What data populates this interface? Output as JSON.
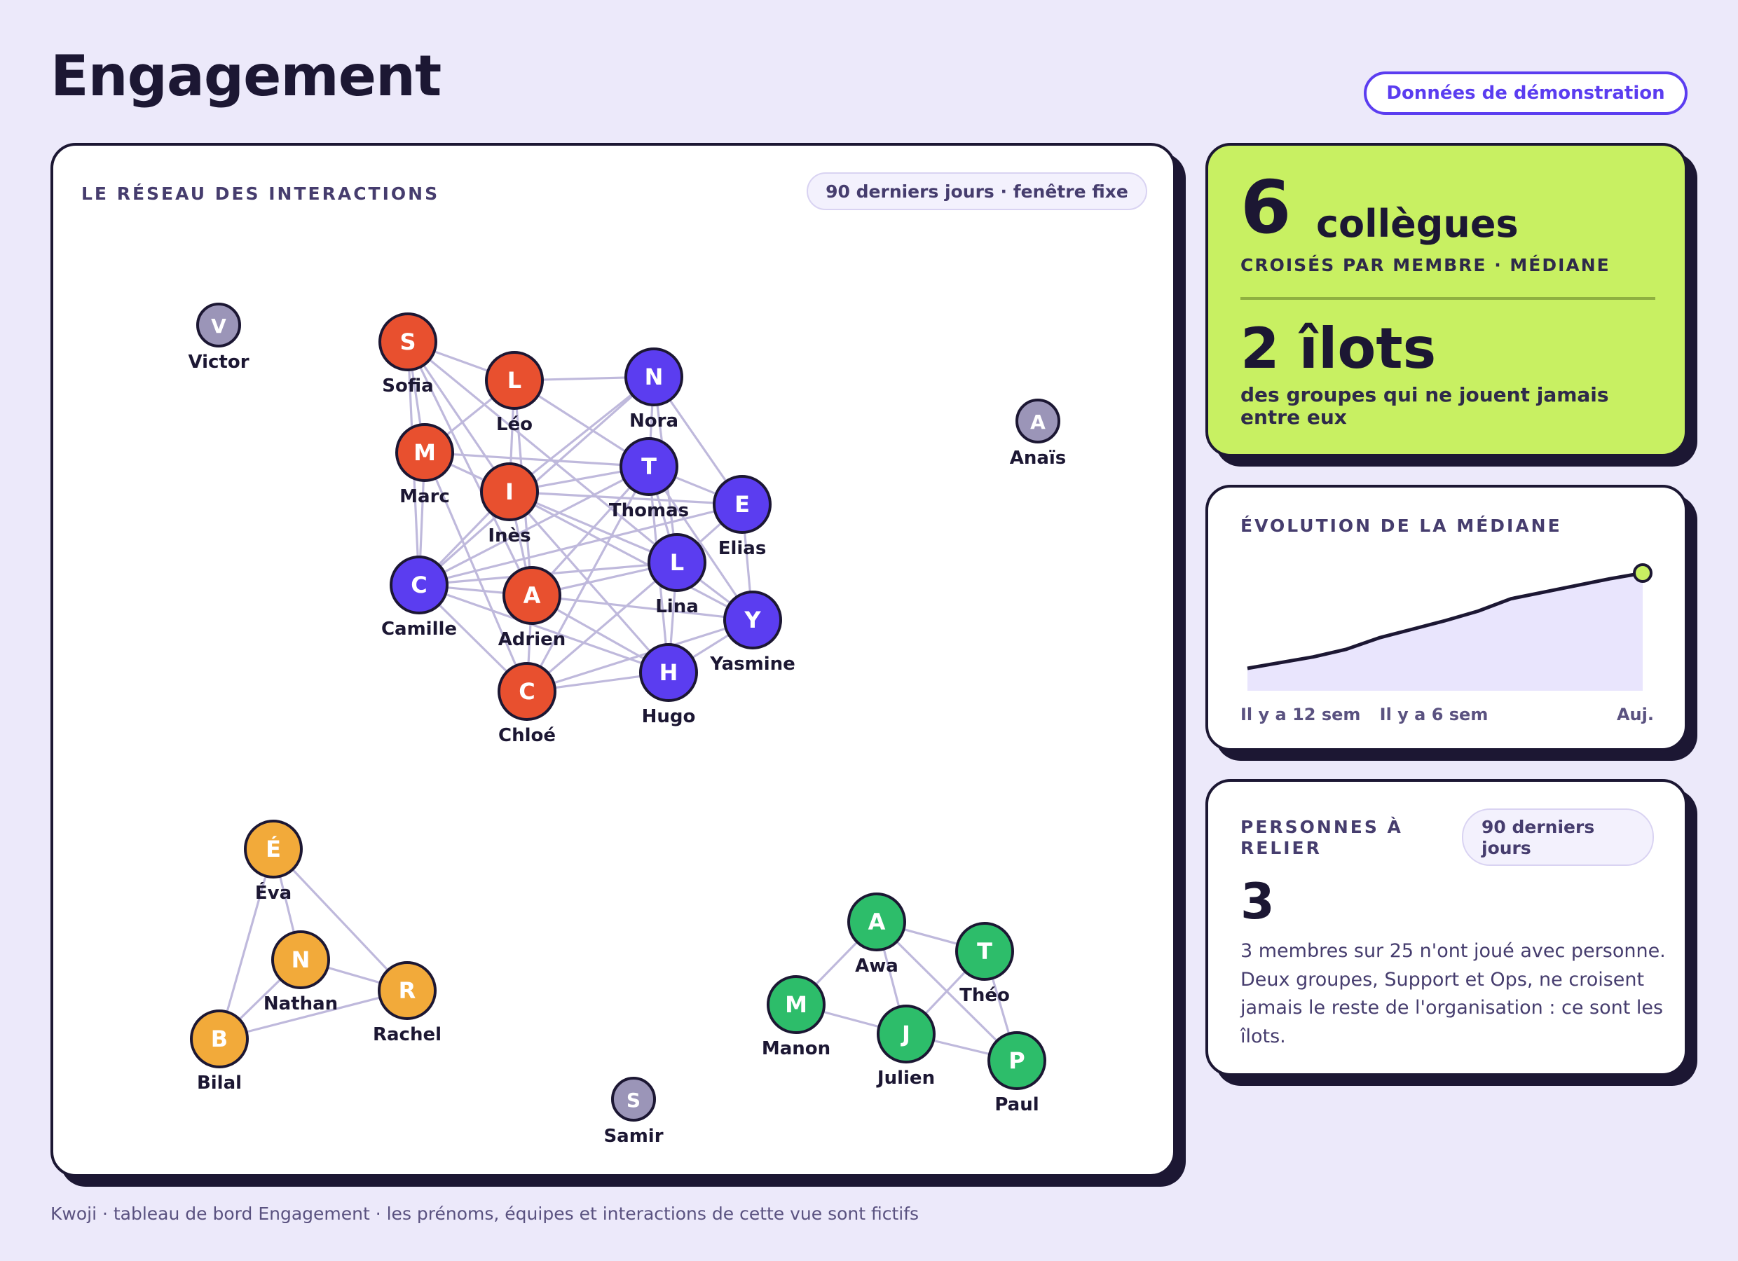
{
  "header": {
    "title": "Engagement",
    "demo_badge": "Données de démonstration"
  },
  "network": {
    "title": "LE RÉSEAU DES INTERACTIONS",
    "window_label": "90 derniers jours · fenêtre fixe",
    "colors": {
      "red": "#e8502f",
      "purple": "#5b3df0",
      "orange": "#f2aa3a",
      "green": "#2dbd6a",
      "gray": "#9b95b8",
      "edge": "#bfb9dc",
      "outline": "#1c1733"
    },
    "nodes": [
      {
        "id": "sofia",
        "letter": "S",
        "name": "Sofia",
        "group": "red"
      },
      {
        "id": "leo",
        "letter": "L",
        "name": "Léo",
        "group": "red"
      },
      {
        "id": "marc",
        "letter": "M",
        "name": "Marc",
        "group": "red"
      },
      {
        "id": "ines",
        "letter": "I",
        "name": "Inès",
        "group": "red"
      },
      {
        "id": "camille",
        "letter": "C",
        "name": "Camille",
        "group": "purple"
      },
      {
        "id": "adrien",
        "letter": "A",
        "name": "Adrien",
        "group": "red"
      },
      {
        "id": "chloe",
        "letter": "C",
        "name": "Chloé",
        "group": "red"
      },
      {
        "id": "nora",
        "letter": "N",
        "name": "Nora",
        "group": "purple"
      },
      {
        "id": "thomas",
        "letter": "T",
        "name": "Thomas",
        "group": "purple"
      },
      {
        "id": "elias",
        "letter": "E",
        "name": "Elias",
        "group": "purple"
      },
      {
        "id": "lina",
        "letter": "L",
        "name": "Lina",
        "group": "purple"
      },
      {
        "id": "yasmine",
        "letter": "Y",
        "name": "Yasmine",
        "group": "purple"
      },
      {
        "id": "hugo",
        "letter": "H",
        "name": "Hugo",
        "group": "purple"
      },
      {
        "id": "victor",
        "letter": "V",
        "name": "Victor",
        "group": "gray"
      },
      {
        "id": "anais",
        "letter": "A",
        "name": "Anaïs",
        "group": "gray"
      },
      {
        "id": "eva",
        "letter": "É",
        "name": "Éva",
        "group": "orange"
      },
      {
        "id": "nathan",
        "letter": "N",
        "name": "Nathan",
        "group": "orange"
      },
      {
        "id": "rachel",
        "letter": "R",
        "name": "Rachel",
        "group": "orange"
      },
      {
        "id": "bilal",
        "letter": "B",
        "name": "Bilal",
        "group": "orange"
      },
      {
        "id": "samir",
        "letter": "S",
        "name": "Samir",
        "group": "gray"
      },
      {
        "id": "awa",
        "letter": "A",
        "name": "Awa",
        "group": "green"
      },
      {
        "id": "theo",
        "letter": "T",
        "name": "Théo",
        "group": "green"
      },
      {
        "id": "manon",
        "letter": "M",
        "name": "Manon",
        "group": "green"
      },
      {
        "id": "julien",
        "letter": "J",
        "name": "Julien",
        "group": "green"
      },
      {
        "id": "paul",
        "letter": "P",
        "name": "Paul",
        "group": "green"
      }
    ],
    "edges": [
      [
        "sofia",
        "leo"
      ],
      [
        "sofia",
        "marc"
      ],
      [
        "sofia",
        "ines"
      ],
      [
        "sofia",
        "camille"
      ],
      [
        "sofia",
        "lina"
      ],
      [
        "sofia",
        "adrien"
      ],
      [
        "leo",
        "ines"
      ],
      [
        "leo",
        "marc"
      ],
      [
        "leo",
        "nora"
      ],
      [
        "leo",
        "thomas"
      ],
      [
        "leo",
        "adrien"
      ],
      [
        "marc",
        "ines"
      ],
      [
        "marc",
        "camille"
      ],
      [
        "marc",
        "thomas"
      ],
      [
        "marc",
        "chloe"
      ],
      [
        "ines",
        "nora"
      ],
      [
        "ines",
        "thomas"
      ],
      [
        "ines",
        "elias"
      ],
      [
        "ines",
        "lina"
      ],
      [
        "ines",
        "camille"
      ],
      [
        "ines",
        "adrien"
      ],
      [
        "ines",
        "yasmine"
      ],
      [
        "ines",
        "hugo"
      ],
      [
        "camille",
        "adrien"
      ],
      [
        "camille",
        "chloe"
      ],
      [
        "camille",
        "thomas"
      ],
      [
        "camille",
        "nora"
      ],
      [
        "camille",
        "lina"
      ],
      [
        "camille",
        "elias"
      ],
      [
        "camille",
        "hugo"
      ],
      [
        "adrien",
        "thomas"
      ],
      [
        "adrien",
        "lina"
      ],
      [
        "adrien",
        "yasmine"
      ],
      [
        "adrien",
        "hugo"
      ],
      [
        "adrien",
        "chloe"
      ],
      [
        "chloe",
        "lina"
      ],
      [
        "chloe",
        "hugo"
      ],
      [
        "chloe",
        "thomas"
      ],
      [
        "chloe",
        "yasmine"
      ],
      [
        "nora",
        "thomas"
      ],
      [
        "nora",
        "elias"
      ],
      [
        "nora",
        "lina"
      ],
      [
        "thomas",
        "elias"
      ],
      [
        "thomas",
        "lina"
      ],
      [
        "thomas",
        "hugo"
      ],
      [
        "thomas",
        "yasmine"
      ],
      [
        "elias",
        "lina"
      ],
      [
        "elias",
        "yasmine"
      ],
      [
        "lina",
        "hugo"
      ],
      [
        "lina",
        "yasmine"
      ],
      [
        "hugo",
        "yasmine"
      ],
      [
        "eva",
        "nathan"
      ],
      [
        "eva",
        "rachel"
      ],
      [
        "eva",
        "bilal"
      ],
      [
        "nathan",
        "rachel"
      ],
      [
        "nathan",
        "bilal"
      ],
      [
        "rachel",
        "bilal"
      ],
      [
        "awa",
        "theo"
      ],
      [
        "awa",
        "manon"
      ],
      [
        "awa",
        "julien"
      ],
      [
        "awa",
        "paul"
      ],
      [
        "theo",
        "julien"
      ],
      [
        "theo",
        "paul"
      ],
      [
        "manon",
        "julien"
      ],
      [
        "julien",
        "paul"
      ]
    ]
  },
  "stats": {
    "colleagues_value": "6",
    "colleagues_unit": "collègues",
    "colleagues_sub": "CROISÉS PAR MEMBRE · MÉDIANE",
    "islands_title": "2 îlots",
    "islands_sub": "des groupes qui ne jouent jamais entre eux"
  },
  "trend": {
    "title": "ÉVOLUTION DE LA MÉDIANE",
    "tick_labels": [
      "Il y a 12 sem",
      "Il y a 6 sem",
      "Auj."
    ],
    "colors": {
      "line": "#1c1733",
      "fill": "#e9e5fd",
      "marker": "#c8f062"
    },
    "chart_data": {
      "type": "area",
      "x": [
        -12,
        -11,
        -10,
        -9,
        -8,
        -7,
        -6,
        -5,
        -4,
        -3,
        -2,
        -1,
        0
      ],
      "values": [
        0.0,
        0.06,
        0.12,
        0.2,
        0.32,
        0.41,
        0.5,
        0.6,
        0.73,
        0.8,
        0.87,
        0.94,
        1.0
      ],
      "xlabel": "",
      "ylabel": ""
    }
  },
  "relink": {
    "title": "PERSONNES À RELIER",
    "window_label": "90 derniers jours",
    "value": "3",
    "description": "3 membres sur 25 n'ont joué avec personne. Deux groupes, Support et Ops, ne croisent jamais le reste de l'organisation : ce sont les îlots."
  },
  "footer": {
    "text": "Kwoji · tableau de bord Engagement · les prénoms, équipes et interactions de cette vue sont fictifs"
  }
}
